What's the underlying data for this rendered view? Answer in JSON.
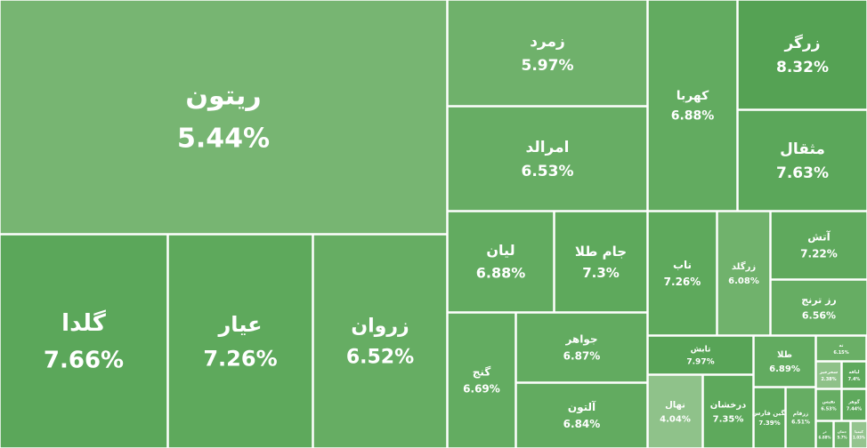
{
  "chart_data": {
    "type": "treemap",
    "categories": [
      "ریتون",
      "گلدا",
      "عیار",
      "زروان",
      "زمرد",
      "امرالد",
      "کهربا",
      "زرگر",
      "مثقال",
      "لیان",
      "جام طلا",
      "گنج",
      "جواهر",
      "آلتون",
      "ناب",
      "زرگلد",
      "آتش",
      "رز ترنج",
      "تابش",
      "نهال",
      "درخشان",
      "طلا",
      "نگین فارس",
      "زرفام",
      "ته",
      "سحرخیز",
      "لیاقه",
      "نفیس",
      "گوهر",
      "ذر",
      "جمان",
      "کیمیا"
    ],
    "values": [
      5.44,
      7.66,
      7.26,
      6.52,
      5.97,
      6.53,
      6.88,
      8.32,
      7.63,
      6.88,
      7.3,
      6.69,
      6.87,
      6.84,
      7.26,
      6.08,
      7.22,
      6.56,
      7.97,
      4.04,
      7.35,
      6.89,
      7.39,
      6.51,
      6.15,
      2.38,
      7.4,
      6.53,
      7.44,
      6.88,
      5.7,
      1.03
    ],
    "value_labels": [
      "5.44%",
      "7.66%",
      "7.26%",
      "6.52%",
      "5.97%",
      "6.53%",
      "6.88%",
      "8.32%",
      "7.63%",
      "6.88%",
      "7.3%",
      "6.69%",
      "6.87%",
      "6.84%",
      "7.26%",
      "6.08%",
      "7.22%",
      "6.56%",
      "7.97%",
      "4.04%",
      "7.35%",
      "6.89%",
      "7.39%",
      "6.51%",
      "6.15%",
      "2.38%",
      "7.4%",
      "6.53%",
      "7.44%",
      "6.88%",
      "5.7%",
      "1.03%"
    ],
    "colors": [
      "#77b572",
      "#5ba75a",
      "#5ea95c",
      "#66ad63",
      "#6fb16b",
      "#67ad64",
      "#62ab60",
      "#55a254",
      "#5ba75a",
      "#62ab60",
      "#5ea95c",
      "#63ac61",
      "#62ab60",
      "#62ab60",
      "#5ea95c",
      "#70b26c",
      "#5fa95d",
      "#66ad63",
      "#58a457",
      "#8fc28a",
      "#5ea95c",
      "#62ab60",
      "#5ea95c",
      "#66ad63",
      "#6aaf66",
      "#8ec189",
      "#5ea95c",
      "#66ad63",
      "#5ea95c",
      "#62ab60",
      "#6fb16b",
      "#94c48f"
    ]
  }
}
